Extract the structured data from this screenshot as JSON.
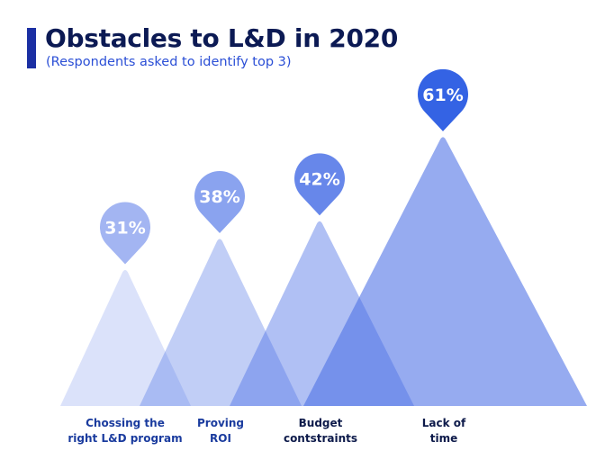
{
  "colors": {
    "title": "#0c1a54",
    "subtitle": "#2b4fd6",
    "accent_bar": "#1b2fa3",
    "triangle_base": "#4a6fe6",
    "label_light": "#1a3b9e",
    "label_dark": "#0d1a4a"
  },
  "chart_data": {
    "type": "bar",
    "title": "Obstacles to L&D in 2020",
    "subtitle": "(Respondents asked to identify top 3)",
    "categories": [
      "Chossing the right L&D program",
      "Proving ROI",
      "Budget contstraints",
      "Lack of time"
    ],
    "category_lines": [
      [
        "Chossing the",
        "right L&D program"
      ],
      [
        "Proving",
        "ROI"
      ],
      [
        "Budget",
        "contstraints"
      ],
      [
        "Lack of",
        "time"
      ]
    ],
    "values": [
      31,
      38,
      42,
      61
    ],
    "value_labels": [
      "31%",
      "38%",
      "42%",
      "61%"
    ],
    "unit": "%",
    "mark_shape": "overlapping triangles with pin data labels",
    "pin_colors": [
      "#a3b5f2",
      "#8aa3ef",
      "#6787ea",
      "#3463e4"
    ],
    "triangle_opacity": [
      0.2,
      0.34,
      0.44,
      0.58
    ],
    "grid": false,
    "legend": "none"
  }
}
